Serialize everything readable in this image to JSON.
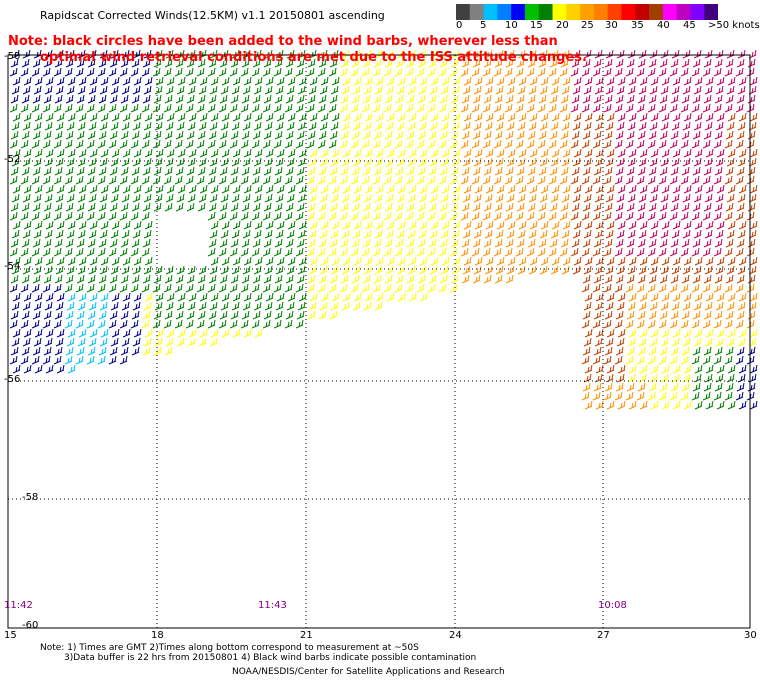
{
  "title": "Rapidscat Corrected Winds(12.5KM) v1.1 20150801 ascending",
  "note_red": {
    "line1": "Note: black circles have been added to the wind barbs, wherever less than",
    "line2": "optimal wind retrieval conditions are met due to the ISS attitude changes."
  },
  "legend": {
    "labels": [
      "0",
      "5",
      "10",
      "15",
      "20",
      "25",
      "30",
      "35",
      "40",
      "45",
      ">50 knots"
    ],
    "colors": [
      "#404040",
      "#808080",
      "#00bfff",
      "#0080ff",
      "#0000ff",
      "#00c000",
      "#008000",
      "#ffff00",
      "#ffd000",
      "#ffa000",
      "#ff8000",
      "#ff4000",
      "#ff0000",
      "#c00000",
      "#a04000",
      "#ff00ff",
      "#c000c0",
      "#8000ff",
      "#400080"
    ]
  },
  "axes": {
    "lat_labels": [
      "-50",
      "-52",
      "-54",
      "-56",
      "-58",
      "-60"
    ],
    "lon_labels": [
      "15",
      "18",
      "21",
      "24",
      "27",
      "30"
    ]
  },
  "times": [
    "11:42",
    "11:43",
    "10:08"
  ],
  "footer": {
    "line1": "Note: 1) Times are GMT 2)Times along bottom correspond to measurement at ~50S",
    "line2": "3)Data buffer is 22 hrs from 20150801 4) Black wind barbs indicate possible contamination",
    "line3": "NOAA/NESDIS/Center for Satellite Applications and Research"
  },
  "wind_colors": {
    "calm": "#000080",
    "light": "#00c0ff",
    "moderate": "#008000",
    "fresh": "#ffff00",
    "strong": "#ff9000",
    "gale": "#c04000",
    "storm": "#c00060"
  }
}
